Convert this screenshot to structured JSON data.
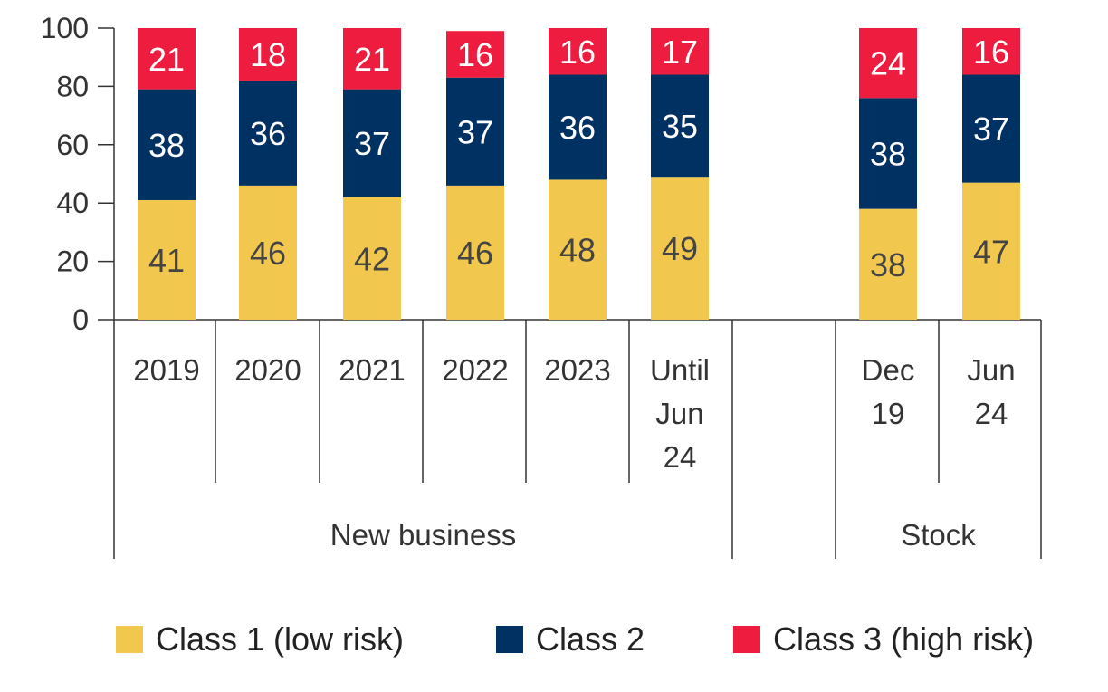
{
  "chart_data": {
    "type": "bar",
    "stacked": true,
    "categories": [
      [
        "2019"
      ],
      [
        "2020"
      ],
      [
        "2021"
      ],
      [
        "2022"
      ],
      [
        "2023"
      ],
      [
        "Until",
        "Jun",
        "24"
      ],
      [
        ""
      ],
      [
        "Dec",
        "19"
      ],
      [
        "Jun",
        "24"
      ]
    ],
    "groups": [
      {
        "label": "New business"
      },
      {
        "label": ""
      },
      {
        "label": "Stock"
      }
    ],
    "series": [
      {
        "name": "Class 1 (low risk)",
        "color": "#F2C74E",
        "label_color": "#444444",
        "values": [
          41,
          46,
          42,
          46,
          48,
          49,
          null,
          38,
          47
        ]
      },
      {
        "name": "Class 2",
        "color": "#003163",
        "label_color": "#FFFFFF",
        "values": [
          38,
          36,
          37,
          37,
          36,
          35,
          null,
          38,
          37
        ]
      },
      {
        "name": "Class 3 (high risk)",
        "color": "#EE1C3E",
        "label_color": "#FFFFFF",
        "values": [
          21,
          18,
          21,
          16,
          16,
          17,
          null,
          24,
          16
        ]
      }
    ],
    "y_ticks": [
      "0",
      "20",
      "40",
      "60",
      "80",
      "100"
    ],
    "ylim": [
      0,
      100
    ],
    "legend_position": "bottom",
    "grid": false
  }
}
